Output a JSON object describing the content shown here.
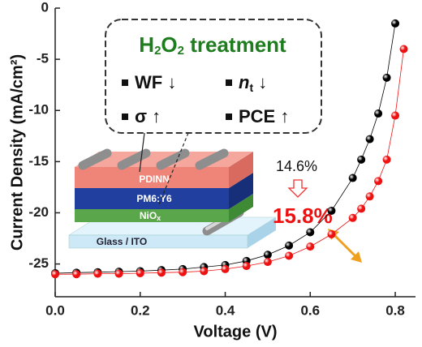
{
  "chart_data": {
    "type": "line",
    "x_label": "Voltage (V)",
    "y_label": "Current Density (mA/cm²)",
    "x": [
      0,
      0.05,
      0.1,
      0.15,
      0.2,
      0.25,
      0.3,
      0.35,
      0.4,
      0.45,
      0.5,
      0.55,
      0.6,
      0.65,
      0.7,
      0.72,
      0.74,
      0.76,
      0.78,
      0.8,
      0.82
    ],
    "series": [
      {
        "name": "14.6%",
        "color": "#000000",
        "values": [
          -25.9,
          -25.85,
          -25.8,
          -25.75,
          -25.7,
          -25.6,
          -25.5,
          -25.3,
          -25.1,
          -24.7,
          -24.1,
          -23.2,
          -21.9,
          -19.8,
          -16.6,
          -14.8,
          -12.8,
          -10.3,
          -6.8,
          -1.5,
          null
        ]
      },
      {
        "name": "15.8%",
        "color": "#ee1111",
        "values": [
          -26.0,
          -26.0,
          -25.95,
          -25.95,
          -25.9,
          -25.85,
          -25.8,
          -25.7,
          -25.5,
          -25.2,
          -24.8,
          -24.2,
          -23.3,
          -22.1,
          -20.5,
          -19.6,
          -18.4,
          -16.9,
          -14.8,
          -10.5,
          -4.0
        ]
      }
    ],
    "xlim": [
      0,
      0.84
    ],
    "ylim": [
      -28.2,
      0
    ],
    "xticks": [
      {
        "value": 0,
        "label": "0.0"
      },
      0.2,
      0.4,
      0.6,
      0.8
    ],
    "yticks": [
      0,
      -5,
      -10,
      -15,
      -20,
      -25
    ],
    "grid": false,
    "inset": {
      "title": [
        "H",
        "2",
        "O",
        "2",
        " treatment"
      ],
      "items": [
        [
          "WF ↓"
        ],
        [
          "n",
          "t",
          " ↓"
        ],
        [
          "σ ↑"
        ],
        [
          "PCE ↑"
        ]
      ],
      "layers": [
        [
          "PDINN"
        ],
        [
          "PM6:Y6"
        ],
        [
          "NiO",
          "x"
        ],
        [
          "Glass / ITO"
        ]
      ]
    }
  }
}
